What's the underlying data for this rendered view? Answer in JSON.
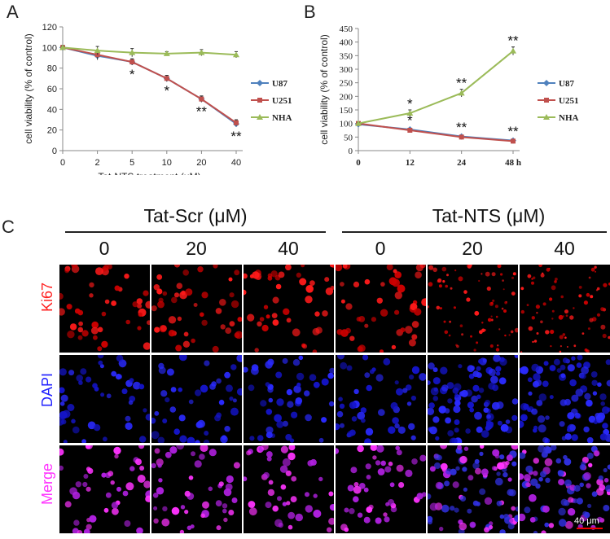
{
  "figure": {
    "panel_labels": {
      "a": "A",
      "b": "B",
      "c": "C"
    }
  },
  "chart_data": [
    {
      "type": "line",
      "panel": "A",
      "xlabel": "Tat-NTS treatment (μM)",
      "ylabel": "cell viability (% of control)",
      "categories": [
        "0",
        "2",
        "5",
        "10",
        "20",
        "40"
      ],
      "yticks": [
        0,
        20,
        40,
        60,
        80,
        100,
        120
      ],
      "ylim": [
        0,
        120
      ],
      "series": [
        {
          "name": "U87",
          "color": "#4f81bd",
          "marker": "diamond",
          "values": [
            100,
            92,
            86,
            70,
            50,
            26
          ],
          "errors": [
            2,
            4,
            3,
            3,
            3,
            3
          ]
        },
        {
          "name": "U251",
          "color": "#c0504d",
          "marker": "square",
          "values": [
            100,
            93,
            86,
            70,
            50,
            27
          ],
          "errors": [
            2,
            4,
            3,
            3,
            3,
            3
          ]
        },
        {
          "name": "NHA",
          "color": "#9bbb59",
          "marker": "triangle",
          "values": [
            100,
            97,
            95,
            94,
            95,
            93
          ],
          "errors": [
            1,
            4,
            4,
            2,
            3,
            3
          ]
        }
      ],
      "significance": [
        "",
        "",
        "*",
        "*",
        "**",
        "**"
      ],
      "legend": "right"
    },
    {
      "type": "line",
      "panel": "B",
      "ylabel": "cell viability (% of control)",
      "categories": [
        "0",
        "12",
        "24",
        "48 h"
      ],
      "yticks": [
        0,
        50,
        100,
        150,
        200,
        250,
        300,
        350,
        400,
        450
      ],
      "ylim": [
        0,
        450
      ],
      "series": [
        {
          "name": "U87",
          "color": "#4f81bd",
          "marker": "diamond",
          "values": [
            97,
            78,
            52,
            37
          ],
          "errors": [
            4,
            5,
            4,
            4
          ]
        },
        {
          "name": "U251",
          "color": "#c0504d",
          "marker": "square",
          "values": [
            100,
            75,
            50,
            35
          ],
          "errors": [
            4,
            5,
            4,
            4
          ]
        },
        {
          "name": "NHA",
          "color": "#9bbb59",
          "marker": "triangle",
          "values": [
            100,
            138,
            212,
            367
          ],
          "errors": [
            4,
            12,
            14,
            15
          ]
        }
      ],
      "significance_upper": [
        "",
        "*",
        "**",
        "**"
      ],
      "significance_lower": [
        "",
        "*",
        "**",
        "**"
      ],
      "legend": "right"
    }
  ],
  "micrographs": {
    "groups": [
      "Tat-Scr (μM)",
      "Tat-NTS (μM)"
    ],
    "concentrations": [
      "0",
      "20",
      "40",
      "0",
      "20",
      "40"
    ],
    "rows": [
      {
        "label": "Ki67",
        "color": "#ff2020"
      },
      {
        "label": "DAPI",
        "color": "#2222ff"
      },
      {
        "label": "Merge",
        "color": "#ff33ff"
      }
    ],
    "scale_bar": "40 μm"
  }
}
